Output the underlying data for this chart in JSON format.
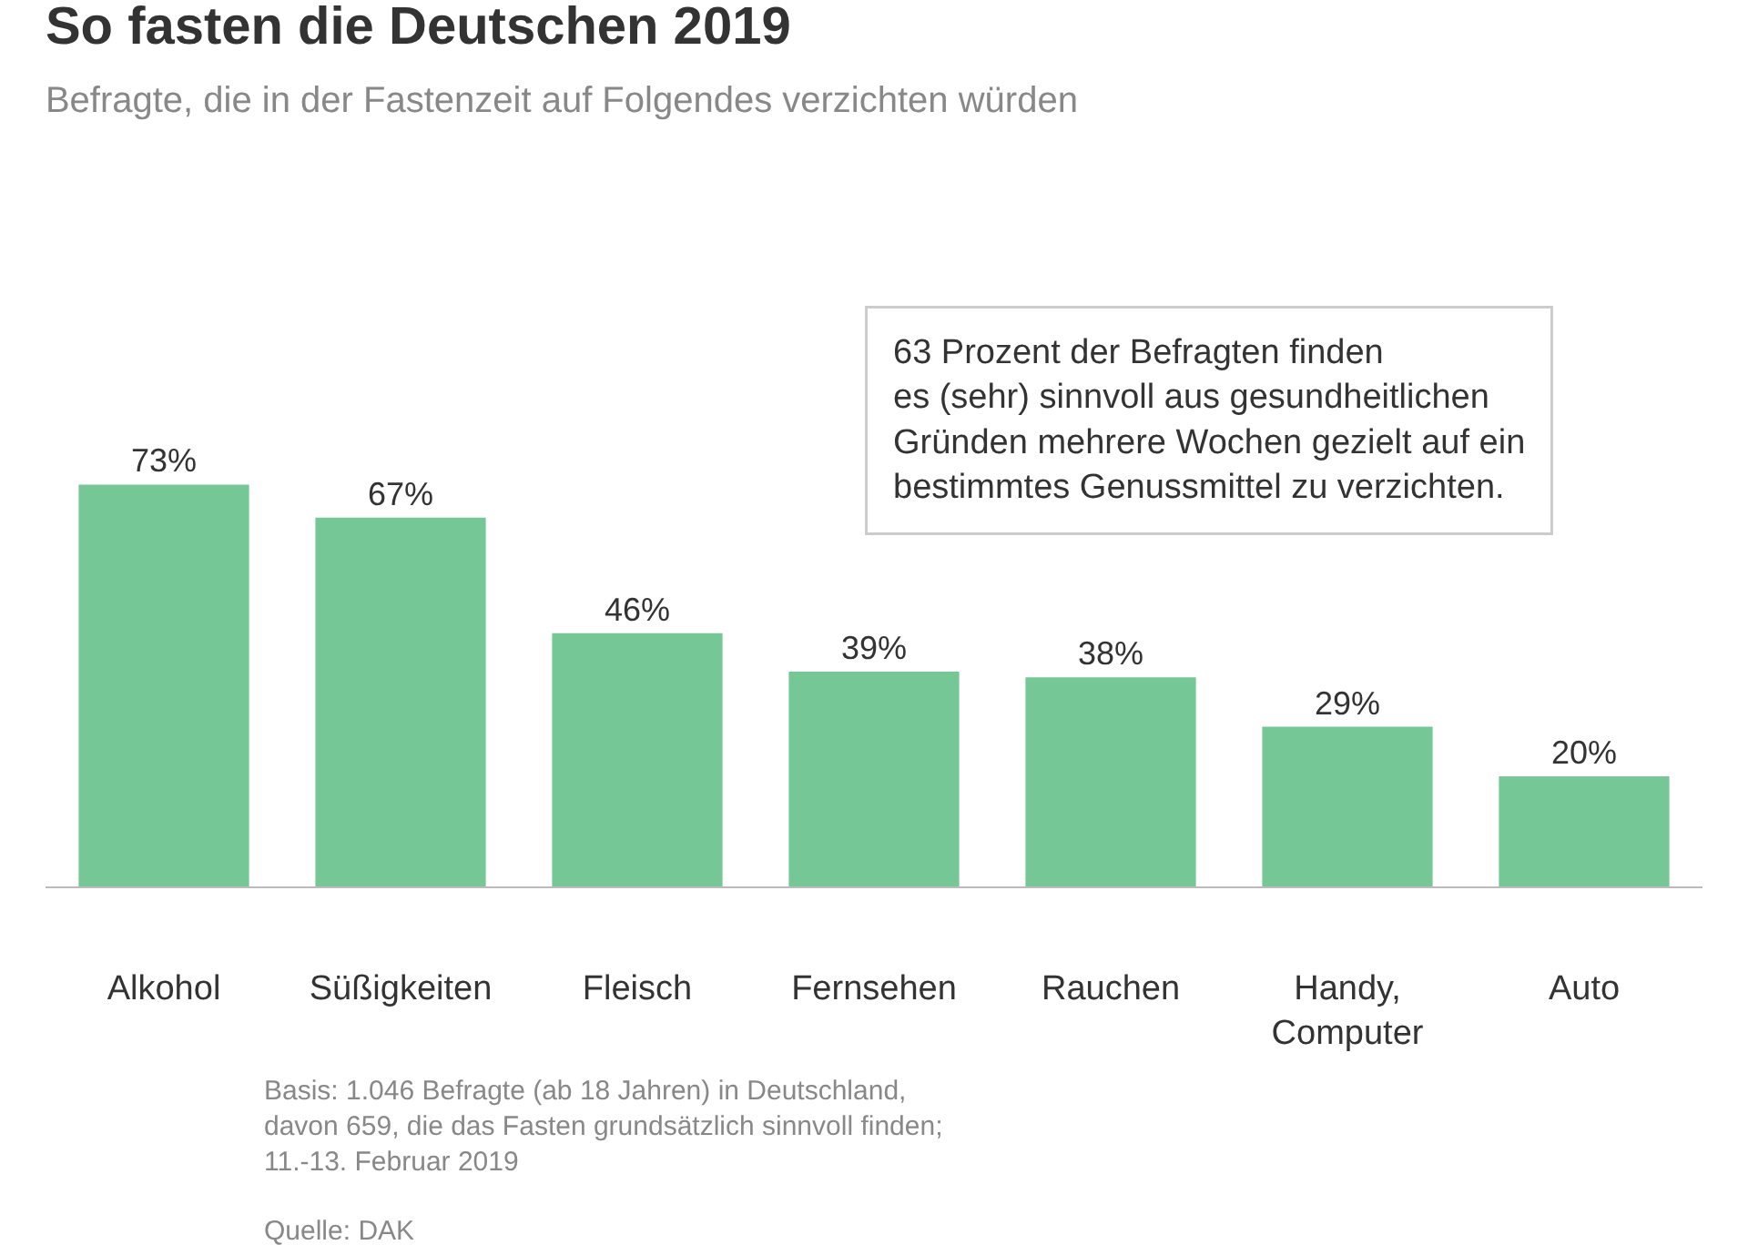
{
  "chart_data": {
    "type": "bar",
    "title": "So fasten die Deutschen 2019",
    "subtitle": "Befragte, die in der Fastenzeit auf Folgendes verzichten würden",
    "categories": [
      "Alkohol",
      "Süßigkeiten",
      "Fleisch",
      "Fernsehen",
      "Rauchen",
      "Handy,\nComputer",
      "Auto"
    ],
    "values": [
      73,
      67,
      46,
      39,
      38,
      29,
      20
    ],
    "value_labels": [
      "73%",
      "67%",
      "46%",
      "39%",
      "38%",
      "29%",
      "20%"
    ],
    "color": "#75c795",
    "tick_labels": "x",
    "annotations": [
      "63 Prozent der Befragten finden\nes (sehr) sinnvoll aus gesundheitlichen\nGründen mehrere Wochen gezielt auf ein\nbestimmtes Genussmittel zu verzichten.",
      "Basis: 1.046 Befragte (ab 18 Jahren) in Deutschland,\ndavon 659, die das Fasten grundsätzlich sinnvoll finden;\n11.-13. Februar 2019",
      "Quelle: DAK"
    ]
  }
}
